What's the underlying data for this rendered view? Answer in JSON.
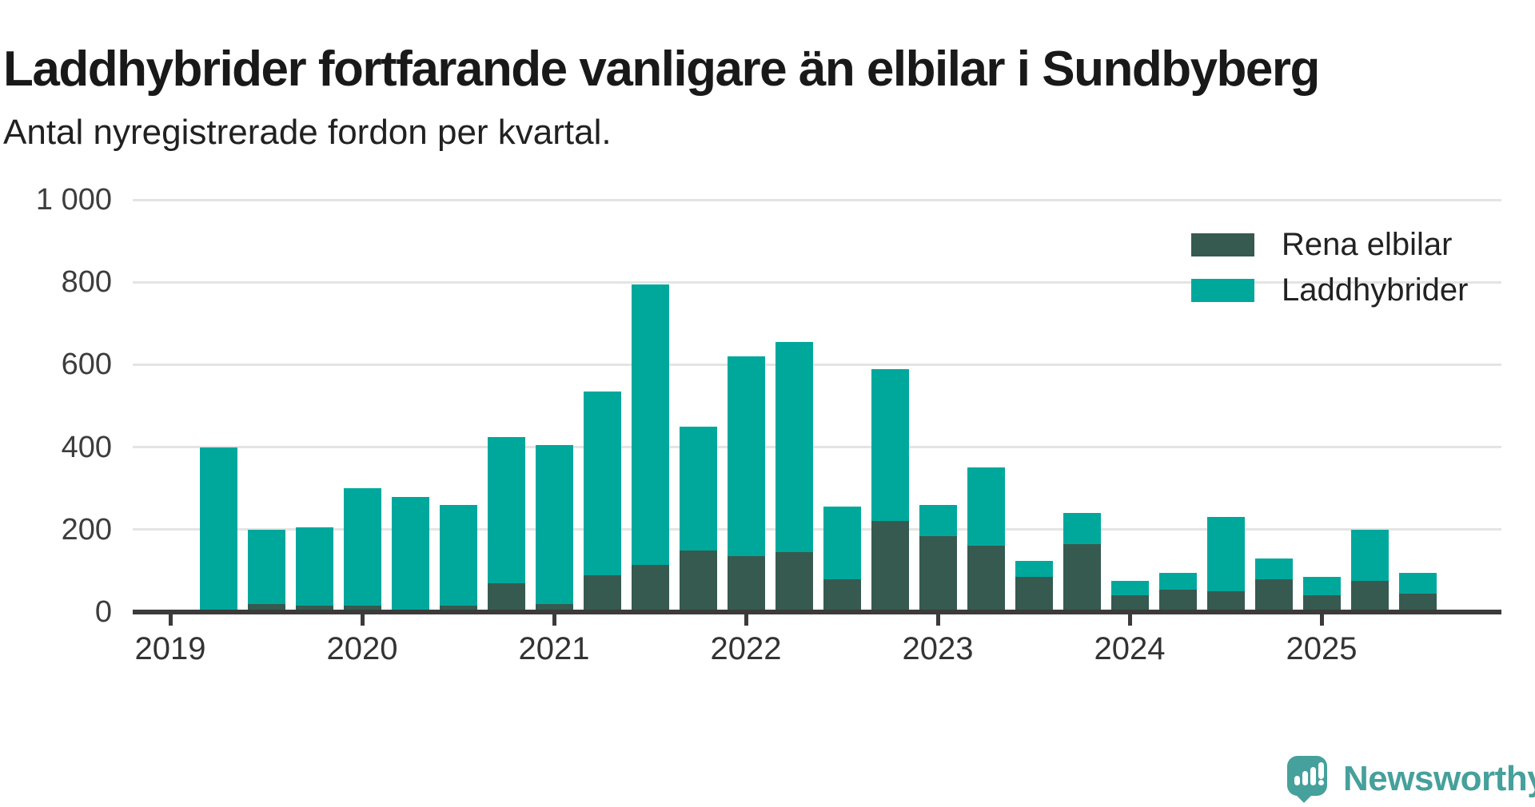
{
  "title": "Laddhybrider fortfarande vanligare än elbilar i Sundbyberg",
  "subtitle": "Antal nyregistrerade fordon per kvartal.",
  "colors": {
    "elbilar": "#365a50",
    "laddhybrider": "#00a89c",
    "axis": "#3b3b3b",
    "grid": "#e4e4e4",
    "logo": "#46a09b"
  },
  "legend": [
    {
      "label": "Rena elbilar",
      "color": "#365a50"
    },
    {
      "label": "Laddhybrider",
      "color": "#00a89c"
    }
  ],
  "y_axis": {
    "ticks": [
      {
        "value": 0,
        "label": "0"
      },
      {
        "value": 200,
        "label": "200"
      },
      {
        "value": 400,
        "label": "400"
      },
      {
        "value": 600,
        "label": "600"
      },
      {
        "value": 800,
        "label": "800"
      },
      {
        "value": 1000,
        "label": "1 000"
      }
    ]
  },
  "x_axis": {
    "years": [
      {
        "label": "2019",
        "quarter_index": 0
      },
      {
        "label": "2020",
        "quarter_index": 4
      },
      {
        "label": "2021",
        "quarter_index": 8
      },
      {
        "label": "2022",
        "quarter_index": 12
      },
      {
        "label": "2023",
        "quarter_index": 16
      },
      {
        "label": "2024",
        "quarter_index": 20
      },
      {
        "label": "2025",
        "quarter_index": 24
      }
    ]
  },
  "chart_data": {
    "type": "bar",
    "stacked": true,
    "title": "Laddhybrider fortfarande vanligare än elbilar i Sundbyberg",
    "subtitle": "Antal nyregistrerade fordon per kvartal.",
    "ylim": [
      0,
      1000
    ],
    "grid": "horizontal",
    "legend_position": "top-right",
    "categories": [
      "2019 Q1",
      "2019 Q2",
      "2019 Q3",
      "2019 Q4",
      "2020 Q1",
      "2020 Q2",
      "2020 Q3",
      "2020 Q4",
      "2021 Q1",
      "2021 Q2",
      "2021 Q3",
      "2021 Q4",
      "2022 Q1",
      "2022 Q2",
      "2022 Q3",
      "2022 Q4",
      "2023 Q1",
      "2023 Q2",
      "2023 Q3",
      "2023 Q4",
      "2024 Q1",
      "2024 Q2",
      "2024 Q3",
      "2024 Q4",
      "2025 Q1",
      "2025 Q2",
      "2025 Q3"
    ],
    "series": [
      {
        "name": "Rena elbilar",
        "color": "#365a50",
        "values": [
          0,
          5,
          20,
          15,
          15,
          5,
          15,
          70,
          20,
          90,
          115,
          150,
          135,
          145,
          80,
          220,
          185,
          160,
          85,
          165,
          40,
          55,
          50,
          80,
          40,
          75,
          45
        ]
      },
      {
        "name": "Laddhybrider",
        "color": "#00a89c",
        "values": [
          0,
          395,
          180,
          190,
          285,
          275,
          245,
          355,
          385,
          445,
          680,
          300,
          485,
          510,
          175,
          370,
          75,
          190,
          40,
          75,
          35,
          40,
          180,
          50,
          45,
          125,
          50
        ]
      }
    ]
  },
  "branding": {
    "name": "Newsworthy"
  }
}
